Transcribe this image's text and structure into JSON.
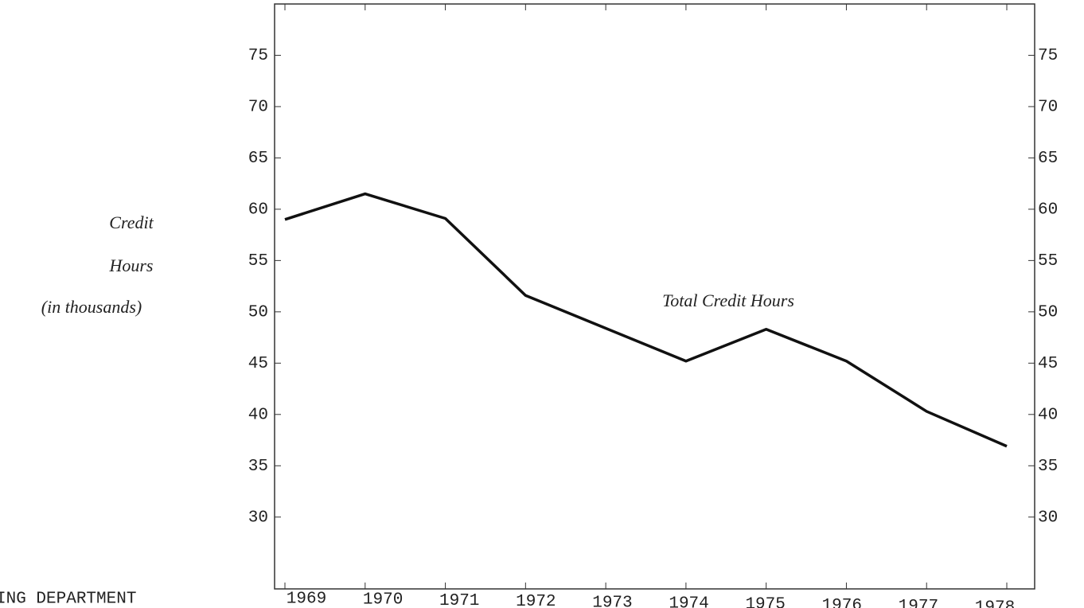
{
  "chart_data": {
    "type": "line",
    "y_label": [
      "Credit",
      "Hours",
      "(in thousands)"
    ],
    "annotation": "Total Credit Hours",
    "footer": "ING DEPARTMENT",
    "categories": [
      "1969",
      "1970",
      "1971",
      "1972",
      "1973",
      "1974",
      "1975",
      "1976",
      "1977",
      "1978"
    ],
    "series": [
      {
        "name": "Total Credit Hours",
        "color": "#111",
        "values": [
          59.0,
          61.5,
          59.1,
          51.6,
          48.4,
          45.2,
          48.3,
          45.2,
          40.3,
          36.9
        ]
      }
    ],
    "ylim": [
      23,
      80
    ],
    "yticks": [
      30,
      35,
      40,
      45,
      50,
      55,
      60,
      65,
      70,
      75
    ],
    "y2lim": [
      23,
      80
    ],
    "y2ticks": [
      30,
      35,
      40,
      45,
      50,
      55,
      60,
      65,
      70,
      75
    ]
  }
}
